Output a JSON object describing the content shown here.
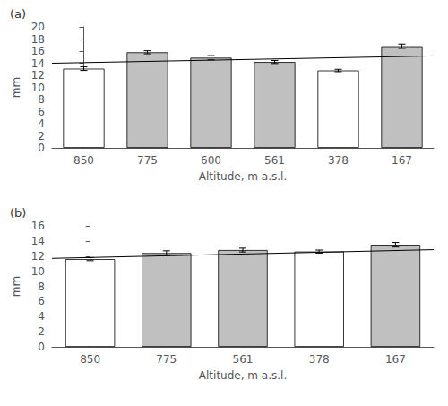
{
  "chart_data": [
    {
      "type": "bar",
      "title": "(a)",
      "categories": [
        "850",
        "775",
        "600",
        "561",
        "378",
        "167"
      ],
      "values": [
        13.1,
        15.8,
        14.9,
        14.2,
        12.8,
        16.8
      ],
      "errors": [
        0.3,
        0.25,
        0.35,
        0.25,
        0.2,
        0.35
      ],
      "colors": [
        "#ffffff",
        "#c0c0c0",
        "#c0c0c0",
        "#c0c0c0",
        "#ffffff",
        "#c0c0c0"
      ],
      "edge_color": "#000000",
      "ylim": [
        0,
        20
      ],
      "yticks": [
        0,
        2,
        4,
        6,
        8,
        10,
        12,
        14,
        16,
        18,
        20
      ],
      "ylabel": "mm",
      "xlabel": "Altitude, m a.s.l.",
      "trend": {
        "values": [
          14.0,
          15.2
        ],
        "color": "#000000"
      },
      "grid": false
    },
    {
      "type": "bar",
      "title": "(b)",
      "categories": [
        "850",
        "775",
        "561",
        "378",
        "167"
      ],
      "values": [
        11.6,
        12.4,
        12.8,
        12.6,
        13.5
      ],
      "errors": [
        0.2,
        0.3,
        0.25,
        0.2,
        0.3
      ],
      "colors": [
        "#ffffff",
        "#c0c0c0",
        "#c0c0c0",
        "#ffffff",
        "#c0c0c0"
      ],
      "edge_color": "#000000",
      "ylim": [
        0,
        16
      ],
      "yticks": [
        0,
        2,
        4,
        6,
        8,
        10,
        12,
        14,
        16
      ],
      "ylabel": "mm",
      "xlabel": "Altitude, m a.s.l.",
      "trend": {
        "values": [
          11.7,
          12.85
        ],
        "color": "#000000"
      },
      "grid": false
    }
  ]
}
